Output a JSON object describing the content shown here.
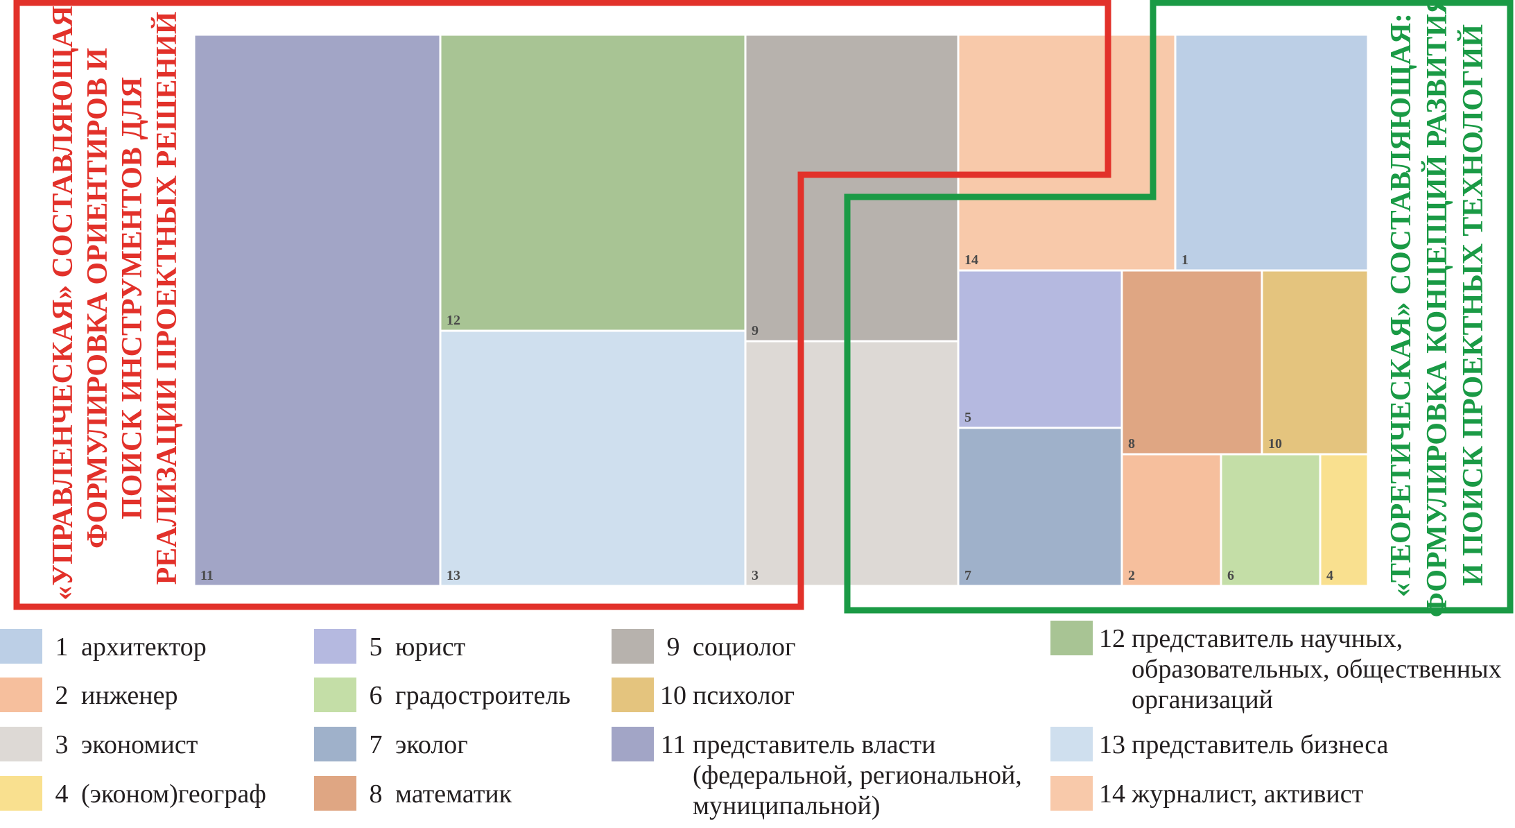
{
  "chart_data": {
    "type": "treemap",
    "tiles": [
      {
        "id": "11",
        "label": "11",
        "color": "#a2a5c6"
      },
      {
        "id": "12",
        "label": "12",
        "color": "#a8c494"
      },
      {
        "id": "13",
        "label": "13",
        "color": "#cfdfee"
      },
      {
        "id": "9",
        "label": "9",
        "color": "#b7b2ad"
      },
      {
        "id": "3",
        "label": "3",
        "color": "#ddd9d5"
      },
      {
        "id": "14",
        "label": "14",
        "color": "#f8c9aa"
      },
      {
        "id": "1",
        "label": "1",
        "color": "#bccfe6"
      },
      {
        "id": "5",
        "label": "5",
        "color": "#b5b9e0"
      },
      {
        "id": "8",
        "label": "8",
        "color": "#dfa683"
      },
      {
        "id": "10",
        "label": "10",
        "color": "#e4c47e"
      },
      {
        "id": "7",
        "label": "7",
        "color": "#9fb1ca"
      },
      {
        "id": "2",
        "label": "2",
        "color": "#f6bf9d"
      },
      {
        "id": "6",
        "label": "6",
        "color": "#c4dea7"
      },
      {
        "id": "4",
        "label": "4",
        "color": "#f9e08f"
      }
    ],
    "groups": [
      {
        "name": "management",
        "color": "#e2312a",
        "lines": [
          "«УПРАВЛЕНЧЕСКАЯ» СОСТАВЛЯЮЩАЯ:",
          "ФОРМУЛИРОВКА ОРИЕНТИРОВ И",
          "ПОИСК ИНСТРУМЕНТОВ ДЛЯ",
          "РЕАЛИЗАЦИИ ПРОЕКТНЫХ РЕШЕНИЙ"
        ]
      },
      {
        "name": "theoretical",
        "color": "#1a9a45",
        "lines": [
          "«ТЕОРЕТИЧЕСКАЯ» СОСТАВЛЯЮЩАЯ:",
          "ФОРМУЛИРОВКА КОНЦЕПЦИЙ РАЗВИТИЯ",
          "И ПОИСК ПРОЕКТНЫХ ТЕХНОЛОГИЙ"
        ]
      }
    ],
    "legend": [
      {
        "num": "1",
        "label": "архитектор",
        "color": "#bccfe6"
      },
      {
        "num": "2",
        "label": "инженер",
        "color": "#f6bf9d"
      },
      {
        "num": "3",
        "label": "экономист",
        "color": "#ddd9d5"
      },
      {
        "num": "4",
        "label": "(эконом)географ",
        "color": "#f9e08f"
      },
      {
        "num": "5",
        "label": "юрист",
        "color": "#b5b9e0"
      },
      {
        "num": "6",
        "label": "градостроитель",
        "color": "#c4dea7"
      },
      {
        "num": "7",
        "label": "эколог",
        "color": "#9fb1ca"
      },
      {
        "num": "8",
        "label": "математик",
        "color": "#dfa683"
      },
      {
        "num": "9",
        "label": "социолог",
        "color": "#b7b2ad"
      },
      {
        "num": "10",
        "label": "психолог",
        "color": "#e4c47e"
      },
      {
        "num": "11",
        "label": "представитель власти\n(федеральной, региональной,\nмуниципальной)",
        "color": "#a2a5c6"
      },
      {
        "num": "12",
        "label": "представитель научных,\nобразовательных, общественных\nорганизаций",
        "color": "#a8c494"
      },
      {
        "num": "13",
        "label": "представитель бизнеса",
        "color": "#cfdfee"
      },
      {
        "num": "14",
        "label": "журналист, активист",
        "color": "#f8c9aa"
      }
    ]
  }
}
